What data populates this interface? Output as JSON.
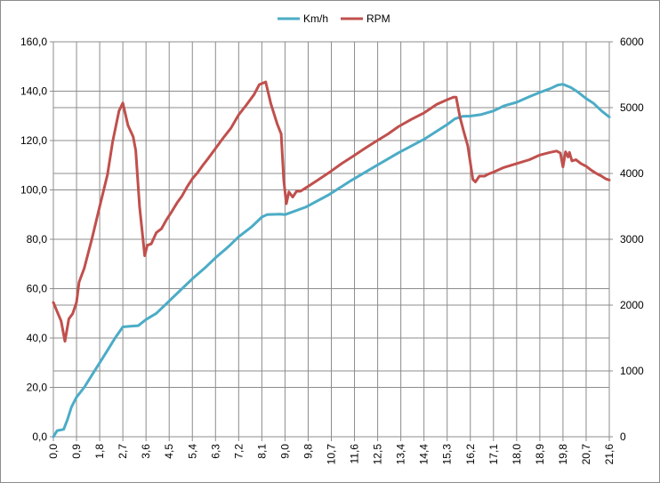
{
  "chart_data": {
    "type": "line",
    "legend": {
      "position": "top"
    },
    "grid": true,
    "x_ticks": [
      "0,0",
      "0,9",
      "1,8",
      "2,7",
      "3,6",
      "4,5",
      "5,4",
      "6,3",
      "7,2",
      "8,1",
      "9,0",
      "9,8",
      "10,7",
      "11,6",
      "12,5",
      "13,4",
      "14,4",
      "15,3",
      "16,2",
      "17,1",
      "18,0",
      "18,9",
      "19,8",
      "20,7",
      "21,6"
    ],
    "xlim": [
      0,
      21.6
    ],
    "y_left": {
      "ticks": [
        "0,0",
        "20,0",
        "40,0",
        "60,0",
        "80,0",
        "100,0",
        "120,0",
        "140,0",
        "160,0"
      ],
      "lim": [
        0,
        160
      ]
    },
    "y_right": {
      "ticks": [
        "0",
        "1000",
        "2000",
        "3000",
        "4000",
        "5000",
        "6000"
      ],
      "lim": [
        0,
        6000
      ]
    },
    "series": [
      {
        "name": "Km/h",
        "color": "#4bacc6",
        "axis": "left",
        "points": [
          [
            0.0,
            0
          ],
          [
            0.15,
            2.5
          ],
          [
            0.4,
            3
          ],
          [
            0.55,
            7
          ],
          [
            0.7,
            12
          ],
          [
            0.9,
            16
          ],
          [
            1.2,
            20
          ],
          [
            1.5,
            25
          ],
          [
            1.8,
            30
          ],
          [
            2.1,
            35
          ],
          [
            2.4,
            40
          ],
          [
            2.7,
            44.5
          ],
          [
            3.0,
            44.8
          ],
          [
            3.3,
            45
          ],
          [
            3.6,
            47.5
          ],
          [
            4.0,
            50
          ],
          [
            4.5,
            55
          ],
          [
            5.0,
            60
          ],
          [
            5.4,
            64
          ],
          [
            5.9,
            68.5
          ],
          [
            6.3,
            72.5
          ],
          [
            6.8,
            77
          ],
          [
            7.2,
            81
          ],
          [
            7.7,
            85
          ],
          [
            8.1,
            89
          ],
          [
            8.3,
            90
          ],
          [
            8.8,
            90.2
          ],
          [
            9.0,
            90
          ],
          [
            9.8,
            93
          ],
          [
            10.7,
            98
          ],
          [
            11.6,
            104
          ],
          [
            12.5,
            109.5
          ],
          [
            13.4,
            115
          ],
          [
            14.4,
            120.5
          ],
          [
            15.3,
            126.5
          ],
          [
            15.6,
            128.8
          ],
          [
            15.9,
            129.8
          ],
          [
            16.2,
            129.9
          ],
          [
            16.6,
            130.5
          ],
          [
            17.1,
            132
          ],
          [
            17.5,
            134
          ],
          [
            18.0,
            135.5
          ],
          [
            18.5,
            137.8
          ],
          [
            18.9,
            139.5
          ],
          [
            19.3,
            141
          ],
          [
            19.6,
            142.5
          ],
          [
            19.8,
            142.8
          ],
          [
            20.1,
            141.5
          ],
          [
            20.4,
            139.5
          ],
          [
            20.7,
            137
          ],
          [
            21.0,
            135
          ],
          [
            21.3,
            132
          ],
          [
            21.6,
            129.5
          ]
        ]
      },
      {
        "name": "RPM",
        "color": "#c0504d",
        "axis": "right",
        "points": [
          [
            0.0,
            2040
          ],
          [
            0.15,
            1900
          ],
          [
            0.3,
            1760
          ],
          [
            0.45,
            1450
          ],
          [
            0.6,
            1790
          ],
          [
            0.75,
            1870
          ],
          [
            0.9,
            2040
          ],
          [
            1.0,
            2350
          ],
          [
            1.2,
            2560
          ],
          [
            1.5,
            3010
          ],
          [
            1.8,
            3500
          ],
          [
            2.1,
            3980
          ],
          [
            2.3,
            4480
          ],
          [
            2.55,
            4950
          ],
          [
            2.7,
            5070
          ],
          [
            2.9,
            4730
          ],
          [
            3.1,
            4560
          ],
          [
            3.2,
            4350
          ],
          [
            3.35,
            3500
          ],
          [
            3.55,
            2750
          ],
          [
            3.65,
            2910
          ],
          [
            3.8,
            2930
          ],
          [
            4.0,
            3100
          ],
          [
            4.2,
            3160
          ],
          [
            4.4,
            3300
          ],
          [
            4.6,
            3420
          ],
          [
            4.8,
            3550
          ],
          [
            5.0,
            3660
          ],
          [
            5.2,
            3800
          ],
          [
            5.4,
            3920
          ],
          [
            5.6,
            4010
          ],
          [
            5.8,
            4120
          ],
          [
            6.0,
            4220
          ],
          [
            6.3,
            4380
          ],
          [
            6.6,
            4540
          ],
          [
            6.9,
            4690
          ],
          [
            7.2,
            4890
          ],
          [
            7.5,
            5040
          ],
          [
            7.8,
            5200
          ],
          [
            8.0,
            5350
          ],
          [
            8.25,
            5390
          ],
          [
            8.45,
            5060
          ],
          [
            8.7,
            4750
          ],
          [
            8.85,
            4600
          ],
          [
            8.95,
            3900
          ],
          [
            9.05,
            3540
          ],
          [
            9.15,
            3720
          ],
          [
            9.3,
            3640
          ],
          [
            9.45,
            3730
          ],
          [
            9.6,
            3730
          ],
          [
            9.8,
            3780
          ],
          [
            10.2,
            3880
          ],
          [
            10.7,
            4010
          ],
          [
            11.2,
            4150
          ],
          [
            11.6,
            4250
          ],
          [
            12.1,
            4380
          ],
          [
            12.5,
            4480
          ],
          [
            13.0,
            4600
          ],
          [
            13.4,
            4710
          ],
          [
            13.9,
            4820
          ],
          [
            14.4,
            4920
          ],
          [
            14.9,
            5050
          ],
          [
            15.3,
            5120
          ],
          [
            15.55,
            5160
          ],
          [
            15.65,
            5160
          ],
          [
            15.8,
            4850
          ],
          [
            15.95,
            4630
          ],
          [
            16.1,
            4420
          ],
          [
            16.3,
            3910
          ],
          [
            16.4,
            3870
          ],
          [
            16.55,
            3960
          ],
          [
            16.75,
            3960
          ],
          [
            16.9,
            3990
          ],
          [
            17.1,
            4020
          ],
          [
            17.5,
            4090
          ],
          [
            18.0,
            4150
          ],
          [
            18.5,
            4210
          ],
          [
            18.9,
            4280
          ],
          [
            19.3,
            4320
          ],
          [
            19.55,
            4340
          ],
          [
            19.7,
            4310
          ],
          [
            19.8,
            4100
          ],
          [
            19.9,
            4330
          ],
          [
            20.0,
            4250
          ],
          [
            20.05,
            4320
          ],
          [
            20.15,
            4190
          ],
          [
            20.3,
            4210
          ],
          [
            20.5,
            4150
          ],
          [
            20.7,
            4110
          ],
          [
            20.9,
            4050
          ],
          [
            21.1,
            4000
          ],
          [
            21.3,
            3960
          ],
          [
            21.45,
            3920
          ],
          [
            21.6,
            3900
          ]
        ]
      }
    ]
  }
}
